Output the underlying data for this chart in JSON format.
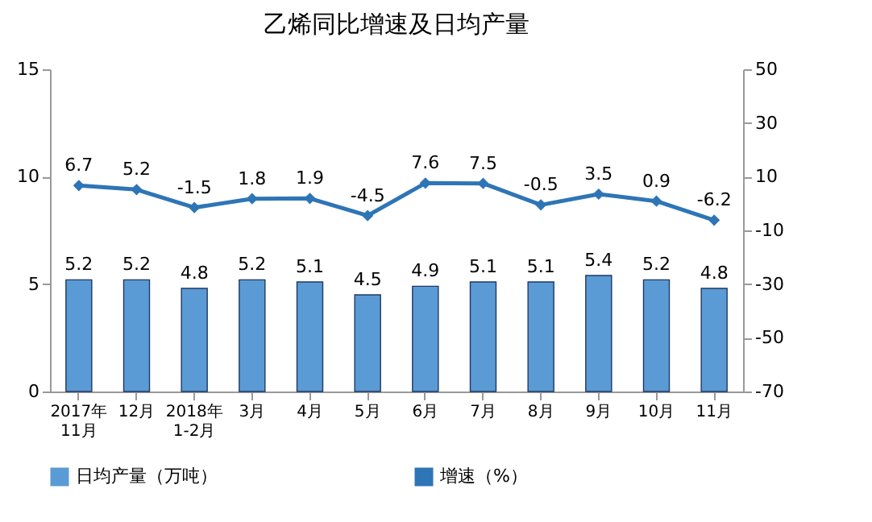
{
  "chart_data": {
    "type": "bar",
    "title": "乙烯同比增速及日均产量",
    "categories": [
      "2017年\n11月",
      "12月",
      "2018年\n1-2月",
      "3月",
      "4月",
      "5月",
      "6月",
      "7月",
      "8月",
      "9月",
      "10月",
      "11月"
    ],
    "series": [
      {
        "name": "日均产量（万吨）",
        "color": "#5b9bd5",
        "values": [
          5.2,
          5.2,
          4.8,
          5.2,
          5.1,
          4.5,
          4.9,
          5.1,
          5.1,
          5.4,
          5.2,
          4.8
        ]
      },
      {
        "name": "增速（%）",
        "type": "line",
        "axis": "y2",
        "color": "#2e75b6",
        "marker": "diamond",
        "values": [
          6.7,
          5.2,
          -1.5,
          1.8,
          1.9,
          -4.5,
          7.6,
          7.5,
          -0.5,
          3.5,
          0.9,
          -6.2
        ]
      }
    ],
    "ylim": [
      0,
      15
    ],
    "yticks": [
      0,
      5,
      10,
      15
    ],
    "y2lim": [
      -70,
      50
    ],
    "y2ticks": [
      -70,
      -50,
      -30,
      -10,
      10,
      30,
      50
    ],
    "data_labels": true,
    "legend": "bottom"
  }
}
